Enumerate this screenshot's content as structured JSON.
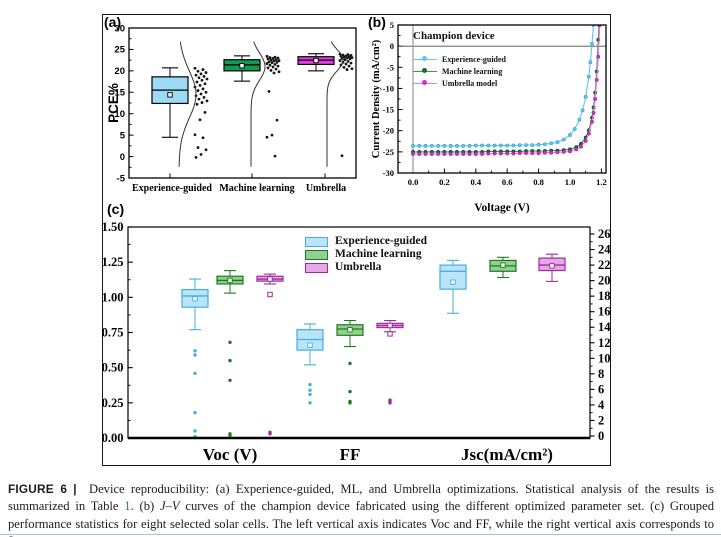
{
  "figure": {
    "panel_a": "(a)",
    "panel_b": "(b)",
    "panel_c": "(c)"
  },
  "colors": {
    "frame": "#151515",
    "link_blue": "#2f6fb0",
    "bottom_rule": "#a9c2d6",
    "scatter_dot": "#161616",
    "distribution_curve": "#333333"
  },
  "caption": {
    "segments": [
      {
        "t": "FIGURE 6",
        "s": "head"
      },
      {
        "t": " |  ",
        "s": "head"
      },
      {
        "t": "Device reproducibility: (a) Experience-guided, ML, and Umbrella optimizations. Statistical analysis of the results is summarized in Table "
      },
      {
        "t": "1",
        "s": "link"
      },
      {
        "t": ". (b) "
      },
      {
        "t": "J–V",
        "s": "i"
      },
      {
        "t": " curves of the champion device fabricated using the different optimized parameter set. (c) Grouped performance statistics for eight selected solar cells. The left vertical axis indicates Voc and FF, while the right vertical axis corresponds to Jsc."
      }
    ]
  },
  "chart_data": [
    {
      "type": "box",
      "panel": "a",
      "ylabel": "PCE%",
      "ylim": [
        -5,
        30
      ],
      "ytick_step": 5,
      "grid": false,
      "categories": [
        "Experience-guided",
        "Machine learning",
        "Umbrella"
      ],
      "series": [
        {
          "name": "Experience-guided",
          "color": "#9ed9f5",
          "box": {
            "whislo": 4.5,
            "q1": 12.4,
            "med": 15.5,
            "q3": 18.6,
            "whishi": 20.7,
            "mean": 14.4
          },
          "points": [
            20.6,
            20.3,
            19.9,
            19.6,
            19.3,
            19.0,
            18.7,
            18.4,
            18.1,
            17.8,
            17.4,
            17.0,
            16.6,
            16.2,
            15.8,
            15.4,
            15.0,
            14.6,
            14.2,
            13.8,
            13.4,
            13.0,
            12.6,
            12.2,
            10.3,
            8.6,
            5.1,
            4.4,
            2.1,
            1.6,
            0.5,
            -0.2
          ],
          "dist": {
            "mu": 14.5,
            "sigma": 5.5
          }
        },
        {
          "name": "Machine learning",
          "color": "#149a55",
          "box": {
            "whislo": 17.6,
            "q1": 20.0,
            "med": 21.4,
            "q3": 22.6,
            "whishi": 23.5,
            "mean": 21.2
          },
          "points": [
            23.4,
            23.2,
            23.1,
            23.0,
            22.9,
            22.8,
            22.6,
            22.5,
            22.4,
            22.3,
            22.1,
            22.0,
            21.9,
            21.7,
            21.5,
            21.3,
            21.1,
            20.9,
            20.7,
            20.4,
            20.1,
            19.8,
            19.5,
            15.2,
            8.5,
            5.0,
            4.5,
            0.1
          ],
          "dist": {
            "mu": 21.0,
            "sigma": 3.2
          }
        },
        {
          "name": "Umbrella",
          "color": "#e73be7",
          "box": {
            "whislo": 20.0,
            "q1": 21.5,
            "med": 22.5,
            "q3": 23.3,
            "whishi": 24.0,
            "mean": 22.4
          },
          "points": [
            23.9,
            23.8,
            23.7,
            23.6,
            23.5,
            23.4,
            23.3,
            23.2,
            23.1,
            23.0,
            22.9,
            22.8,
            22.6,
            22.4,
            22.2,
            22.0,
            21.8,
            21.6,
            21.4,
            21.1,
            20.8,
            20.5,
            20.3,
            0.2
          ],
          "dist": {
            "mu": 22.5,
            "sigma": 2.6
          }
        }
      ]
    },
    {
      "type": "line",
      "panel": "b",
      "legend_title": "Champion device",
      "xlabel": "Voltage (V)",
      "ylabel": "Current Density (mA/cm²)",
      "xlim": [
        0,
        1.2
      ],
      "ylim": [
        -30,
        5
      ],
      "xtick_step": 0.2,
      "ytick_step": 5,
      "series": [
        {
          "name": "Experience-guided",
          "line_color": "#62c6f2",
          "marker_color": "#62c6f2",
          "marker_edge": "#2d9bd1",
          "points": [
            [
              0,
              -23.6
            ],
            [
              0.04,
              -23.6
            ],
            [
              0.08,
              -23.6
            ],
            [
              0.12,
              -23.6
            ],
            [
              0.16,
              -23.6
            ],
            [
              0.2,
              -23.6
            ],
            [
              0.24,
              -23.6
            ],
            [
              0.28,
              -23.6
            ],
            [
              0.32,
              -23.6
            ],
            [
              0.36,
              -23.6
            ],
            [
              0.4,
              -23.5
            ],
            [
              0.44,
              -23.5
            ],
            [
              0.48,
              -23.5
            ],
            [
              0.52,
              -23.5
            ],
            [
              0.56,
              -23.5
            ],
            [
              0.6,
              -23.5
            ],
            [
              0.64,
              -23.5
            ],
            [
              0.68,
              -23.4
            ],
            [
              0.72,
              -23.4
            ],
            [
              0.76,
              -23.4
            ],
            [
              0.8,
              -23.3
            ],
            [
              0.84,
              -23.2
            ],
            [
              0.88,
              -23.0
            ],
            [
              0.92,
              -22.7
            ],
            [
              0.96,
              -22.1
            ],
            [
              1.0,
              -21.0
            ],
            [
              1.03,
              -19.6
            ],
            [
              1.06,
              -17.4
            ],
            [
              1.08,
              -15.2
            ],
            [
              1.1,
              -12.0
            ],
            [
              1.12,
              -7.2
            ],
            [
              1.13,
              -3.8
            ],
            [
              1.14,
              0.5
            ],
            [
              1.15,
              5.0
            ]
          ]
        },
        {
          "name": "Machine learning",
          "line_color": "#2fa04a",
          "marker_color": "#1b6b2a",
          "marker_edge": "#0d4417",
          "points": [
            [
              0,
              -25.0
            ],
            [
              0.04,
              -25.0
            ],
            [
              0.08,
              -25.0
            ],
            [
              0.12,
              -25.0
            ],
            [
              0.16,
              -25.0
            ],
            [
              0.2,
              -25.0
            ],
            [
              0.24,
              -25.0
            ],
            [
              0.28,
              -25.0
            ],
            [
              0.32,
              -25.0
            ],
            [
              0.36,
              -25.0
            ],
            [
              0.4,
              -25.0
            ],
            [
              0.44,
              -25.0
            ],
            [
              0.48,
              -24.9
            ],
            [
              0.52,
              -24.9
            ],
            [
              0.56,
              -24.9
            ],
            [
              0.6,
              -24.9
            ],
            [
              0.64,
              -24.9
            ],
            [
              0.68,
              -24.9
            ],
            [
              0.72,
              -24.8
            ],
            [
              0.76,
              -24.8
            ],
            [
              0.8,
              -24.8
            ],
            [
              0.84,
              -24.8
            ],
            [
              0.88,
              -24.7
            ],
            [
              0.92,
              -24.7
            ],
            [
              0.96,
              -24.6
            ],
            [
              1.0,
              -24.4
            ],
            [
              1.04,
              -23.9
            ],
            [
              1.07,
              -23.1
            ],
            [
              1.1,
              -21.6
            ],
            [
              1.12,
              -19.9
            ],
            [
              1.14,
              -16.9
            ],
            [
              1.15,
              -14.5
            ],
            [
              1.16,
              -11.0
            ],
            [
              1.17,
              -6.0
            ],
            [
              1.18,
              1.5
            ],
            [
              1.185,
              5.0
            ]
          ]
        },
        {
          "name": "Umbrella model",
          "line_color": "#e87ae8",
          "marker_color": "#d12fd1",
          "marker_edge": "#a21aa2",
          "points": [
            [
              0,
              -25.5
            ],
            [
              0.04,
              -25.5
            ],
            [
              0.08,
              -25.5
            ],
            [
              0.12,
              -25.5
            ],
            [
              0.16,
              -25.5
            ],
            [
              0.2,
              -25.5
            ],
            [
              0.24,
              -25.5
            ],
            [
              0.28,
              -25.5
            ],
            [
              0.32,
              -25.5
            ],
            [
              0.36,
              -25.5
            ],
            [
              0.4,
              -25.5
            ],
            [
              0.44,
              -25.5
            ],
            [
              0.48,
              -25.4
            ],
            [
              0.52,
              -25.4
            ],
            [
              0.56,
              -25.4
            ],
            [
              0.6,
              -25.4
            ],
            [
              0.64,
              -25.4
            ],
            [
              0.68,
              -25.3
            ],
            [
              0.72,
              -25.3
            ],
            [
              0.76,
              -25.3
            ],
            [
              0.8,
              -25.3
            ],
            [
              0.84,
              -25.2
            ],
            [
              0.88,
              -25.2
            ],
            [
              0.92,
              -25.1
            ],
            [
              0.96,
              -25.0
            ],
            [
              1.0,
              -24.9
            ],
            [
              1.04,
              -24.4
            ],
            [
              1.07,
              -23.8
            ],
            [
              1.1,
              -22.4
            ],
            [
              1.12,
              -20.7
            ],
            [
              1.14,
              -17.9
            ],
            [
              1.15,
              -15.8
            ],
            [
              1.16,
              -12.5
            ],
            [
              1.17,
              -8.0
            ],
            [
              1.18,
              -2.5
            ],
            [
              1.19,
              5.0
            ]
          ]
        }
      ]
    },
    {
      "type": "box",
      "panel": "c",
      "groups": [
        "Voc (V)",
        "FF",
        "Jsc(mA/cm²)"
      ],
      "group_axis": [
        "left",
        "left",
        "right"
      ],
      "left_axis": {
        "range": [
          0,
          1.5
        ],
        "tick_step": 0.25
      },
      "right_axis": {
        "range": [
          0,
          26
        ],
        "tick_step": 2
      },
      "series": [
        {
          "name": "Experience-guided",
          "fill": "#b9e4f9",
          "stroke": "#46aede",
          "boxes": [
            {
              "whislo": 0.77,
              "q1": 0.93,
              "med": 1.01,
              "q3": 1.055,
              "whishi": 1.13,
              "mean": 0.99,
              "outliers": [
                0.62,
                0.59,
                0.46,
                0.18,
                0.05,
                0.01
              ],
              "open_outliers": []
            },
            {
              "whislo": 0.52,
              "q1": 0.625,
              "med": 0.7,
              "q3": 0.77,
              "whishi": 0.81,
              "mean": 0.66,
              "outliers": [
                0.38,
                0.34,
                0.31,
                0.25
              ],
              "open_outliers": []
            },
            {
              "whislo": 15.8,
              "q1": 18.9,
              "med": 21.2,
              "q3": 22.0,
              "whishi": 22.6,
              "mean": 19.8,
              "outliers": [],
              "open_outliers": []
            }
          ]
        },
        {
          "name": "Machine learning",
          "fill": "#92d092",
          "stroke": "#1f7a1f",
          "boxes": [
            {
              "whislo": 1.03,
              "q1": 1.095,
              "med": 1.12,
              "q3": 1.15,
              "whishi": 1.19,
              "mean": 1.12,
              "outliers": [
                0.68,
                0.55,
                0.41,
                0.03,
                0.02
              ],
              "open_outliers": []
            },
            {
              "whislo": 0.65,
              "q1": 0.73,
              "med": 0.775,
              "q3": 0.805,
              "whishi": 0.835,
              "mean": 0.77,
              "outliers": [
                0.53,
                0.33,
                0.26,
                0.25
              ],
              "open_outliers": []
            },
            {
              "whislo": 20.4,
              "q1": 21.2,
              "med": 21.9,
              "q3": 22.6,
              "whishi": 23.0,
              "mean": 22.0,
              "outliers": [],
              "open_outliers": []
            }
          ]
        },
        {
          "name": "Umbrella",
          "fill": "#e9a6e9",
          "stroke": "#9a2d9a",
          "boxes": [
            {
              "whislo": 1.095,
              "q1": 1.115,
              "med": 1.13,
              "q3": 1.15,
              "whishi": 1.165,
              "mean": 1.13,
              "outliers": [
                0.04,
                0.03
              ],
              "open_outliers": [
                1.02
              ]
            },
            {
              "whislo": 0.755,
              "q1": 0.785,
              "med": 0.8,
              "q3": 0.815,
              "whishi": 0.835,
              "mean": 0.8,
              "outliers": [
                0.27,
                0.26,
                0.25
              ],
              "open_outliers": [
                0.74
              ]
            },
            {
              "whislo": 19.9,
              "q1": 21.3,
              "med": 22.0,
              "q3": 22.9,
              "whishi": 23.4,
              "mean": 21.9,
              "outliers": [],
              "open_outliers": []
            }
          ]
        }
      ]
    }
  ]
}
